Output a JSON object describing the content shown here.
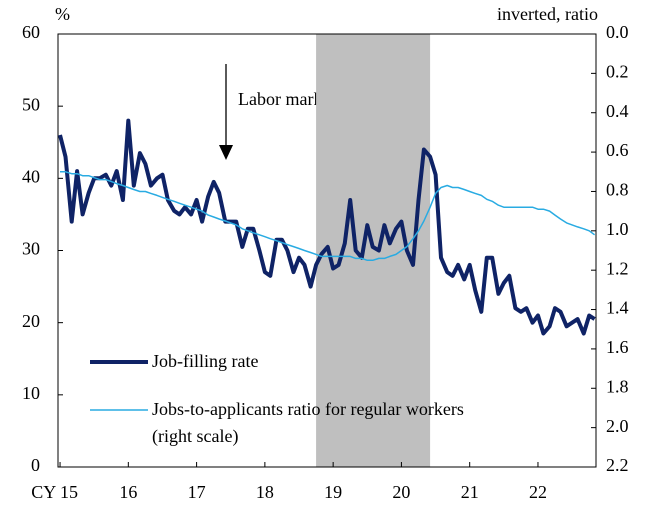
{
  "chart_data": {
    "type": "line",
    "y_label": "%",
    "y2_label": "inverted, ratio",
    "annotation": "Labor market is tight",
    "shade": [
      2018.75,
      2020.42
    ],
    "shade_color": "#bfbfbf",
    "xlim": [
      2014.97,
      2022.85
    ],
    "xticks": [
      {
        "value": 2015,
        "label": "CY 15"
      },
      {
        "value": 2016,
        "label": "16"
      },
      {
        "value": 2017,
        "label": "17"
      },
      {
        "value": 2018,
        "label": "18"
      },
      {
        "value": 2019,
        "label": "19"
      },
      {
        "value": 2020,
        "label": "20"
      },
      {
        "value": 2021,
        "label": "21"
      },
      {
        "value": 2022,
        "label": "22"
      }
    ],
    "ylim": [
      0,
      60
    ],
    "yticks": [
      0,
      10,
      20,
      30,
      40,
      50,
      60
    ],
    "y2lim": [
      0,
      2.2
    ],
    "y2_inverted": true,
    "y2ticks": [
      {
        "value": 0,
        "label": "0.0"
      },
      0.2,
      0.4,
      0.6,
      0.8,
      {
        "value": 1,
        "label": "1.0"
      },
      1.2,
      1.4,
      1.6,
      1.8,
      {
        "value": 2,
        "label": "2.0"
      },
      2.2
    ],
    "x": [
      2015.0,
      2015.08,
      2015.17,
      2015.25,
      2015.33,
      2015.42,
      2015.5,
      2015.58,
      2015.67,
      2015.75,
      2015.83,
      2015.92,
      2016.0,
      2016.08,
      2016.17,
      2016.25,
      2016.33,
      2016.42,
      2016.5,
      2016.58,
      2016.67,
      2016.75,
      2016.83,
      2016.92,
      2017.0,
      2017.08,
      2017.17,
      2017.25,
      2017.33,
      2017.42,
      2017.5,
      2017.58,
      2017.67,
      2017.75,
      2017.83,
      2017.92,
      2018.0,
      2018.08,
      2018.17,
      2018.25,
      2018.33,
      2018.42,
      2018.5,
      2018.58,
      2018.67,
      2018.75,
      2018.83,
      2018.92,
      2019.0,
      2019.08,
      2019.17,
      2019.25,
      2019.33,
      2019.42,
      2019.5,
      2019.58,
      2019.67,
      2019.75,
      2019.83,
      2019.92,
      2020.0,
      2020.08,
      2020.17,
      2020.25,
      2020.33,
      2020.42,
      2020.5,
      2020.58,
      2020.67,
      2020.75,
      2020.83,
      2020.92,
      2021.0,
      2021.08,
      2021.17,
      2021.25,
      2021.33,
      2021.42,
      2021.5,
      2021.58,
      2021.67,
      2021.75,
      2021.83,
      2021.92,
      2022.0,
      2022.08,
      2022.17,
      2022.25,
      2022.33,
      2022.42,
      2022.5,
      2022.58,
      2022.67,
      2022.75,
      2022.83
    ],
    "series": [
      {
        "name": "Job-filling rate",
        "color": "#0f2366",
        "line_width": 4,
        "values": [
          46,
          43,
          34,
          41,
          35,
          38,
          40,
          40,
          40.5,
          39,
          41,
          37,
          48,
          39,
          43.5,
          42,
          39,
          40,
          40.5,
          37,
          35.5,
          35,
          36,
          35,
          37,
          34,
          37.5,
          39.5,
          38,
          34,
          34,
          34,
          30.5,
          33,
          33,
          30,
          27,
          26.5,
          31.5,
          31.5,
          30,
          27,
          29,
          28,
          25,
          28,
          29.5,
          30.5,
          27.5,
          28,
          31,
          37,
          30,
          29,
          33.5,
          30.5,
          30,
          33.5,
          31,
          33,
          34,
          30,
          28,
          37,
          44,
          43,
          40.5,
          29,
          27,
          26.5,
          28,
          26,
          28,
          24.5,
          21.5,
          29,
          29,
          24,
          25.5,
          26.5,
          22,
          21.5,
          22,
          20,
          21,
          18.5,
          19.5,
          22,
          21.5,
          19.5,
          20,
          20.5,
          18.5,
          21,
          20.5
        ]
      },
      {
        "name": "Jobs-to-applicants ratio for regular workers\n(right scale)",
        "color": "#29abe2",
        "line_width": 1.5,
        "axis": "y2",
        "values": [
          0.7,
          0.7,
          0.71,
          0.71,
          0.72,
          0.72,
          0.73,
          0.74,
          0.74,
          0.75,
          0.76,
          0.77,
          0.78,
          0.79,
          0.8,
          0.8,
          0.81,
          0.82,
          0.83,
          0.84,
          0.85,
          0.86,
          0.87,
          0.88,
          0.89,
          0.9,
          0.92,
          0.93,
          0.94,
          0.95,
          0.96,
          0.97,
          0.99,
          1.0,
          1.01,
          1.02,
          1.03,
          1.04,
          1.05,
          1.06,
          1.07,
          1.08,
          1.09,
          1.1,
          1.11,
          1.12,
          1.13,
          1.13,
          1.13,
          1.13,
          1.13,
          1.13,
          1.14,
          1.14,
          1.15,
          1.15,
          1.14,
          1.14,
          1.13,
          1.12,
          1.1,
          1.08,
          1.04,
          1.0,
          0.95,
          0.88,
          0.81,
          0.78,
          0.77,
          0.78,
          0.78,
          0.79,
          0.8,
          0.81,
          0.82,
          0.84,
          0.85,
          0.87,
          0.88,
          0.88,
          0.88,
          0.88,
          0.88,
          0.88,
          0.89,
          0.89,
          0.9,
          0.92,
          0.94,
          0.96,
          0.97,
          0.98,
          0.99,
          1.0,
          1.02
        ]
      }
    ]
  }
}
